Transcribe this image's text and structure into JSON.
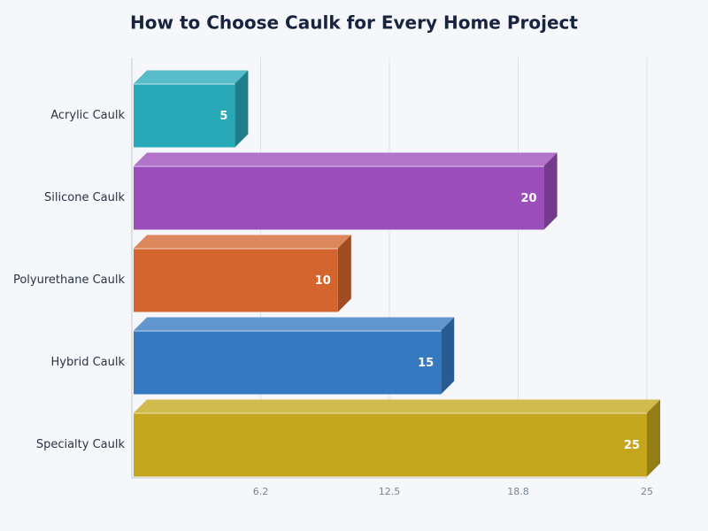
{
  "chart_data": {
    "type": "bar3d-horizontal",
    "title": "How to Choose Caulk for Every Home Project",
    "categories": [
      "Acrylic Caulk",
      "Silicone Caulk",
      "Polyurethane Caulk",
      "Hybrid Caulk",
      "Specialty Caulk"
    ],
    "values": [
      5,
      20,
      10,
      15,
      25
    ],
    "colors": [
      "#29a8b8",
      "#9b4dba",
      "#d4652e",
      "#3579c1",
      "#c4a61c"
    ],
    "xlim": [
      0,
      25
    ],
    "xticks": [
      {
        "value": 6.25,
        "label": "6.2"
      },
      12.5,
      {
        "value": 18.75,
        "label": "18.8"
      },
      25
    ],
    "grid": true
  }
}
